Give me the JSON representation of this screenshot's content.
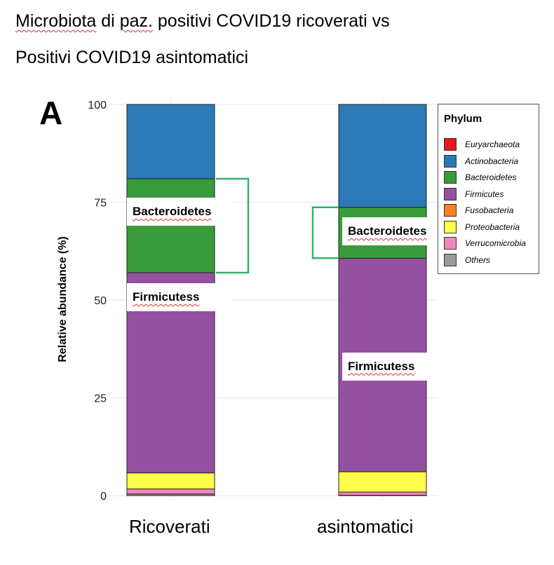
{
  "title": {
    "line1_parts": [
      "Microbiota",
      " di ",
      "paz.",
      " positivi COVID19 ",
      "ricoverati",
      " vs"
    ],
    "line2_parts": [
      "Positivi  COVID19 ",
      "asintomatici"
    ]
  },
  "panel_letter": "A",
  "chart_data": {
    "type": "bar",
    "stacked": true,
    "categories": [
      "Ricoverati",
      "asintomatici"
    ],
    "ylabel": "Relative abundance (%)",
    "ylim": [
      0,
      100
    ],
    "yticks": [
      0,
      25,
      50,
      75,
      100
    ],
    "grid": true,
    "legend_title": "Phylum",
    "legend_position": "right",
    "series": [
      {
        "name": "Euryarchaeota",
        "color": "#e41a1c",
        "values": [
          0.0,
          0.0
        ]
      },
      {
        "name": "Actinobacteria",
        "color": "#2b79b6",
        "values": [
          19.0,
          26.3
        ]
      },
      {
        "name": "Bacteroidetes",
        "color": "#3a9b3a",
        "values": [
          24.0,
          13.0
        ]
      },
      {
        "name": "Firmicutes",
        "color": "#9550a2",
        "values": [
          51.2,
          54.6
        ]
      },
      {
        "name": "Fusobacteria",
        "color": "#ff7f1f",
        "values": [
          0.0,
          0.0
        ]
      },
      {
        "name": "Proteobacteria",
        "color": "#fffe4a",
        "values": [
          4.1,
          5.2
        ]
      },
      {
        "name": "Verrucomicrobia",
        "color": "#f287bf",
        "values": [
          1.3,
          0.8
        ]
      },
      {
        "name": "Others",
        "color": "#999999",
        "values": [
          0.4,
          0.1
        ]
      }
    ],
    "annotations": [
      {
        "text": "Bacteroidetes",
        "category": "Ricoverati"
      },
      {
        "text": "Firmicutess",
        "category": "Ricoverati"
      },
      {
        "text": "Bacteroidetes",
        "category": "asintomatici"
      },
      {
        "text": "Firmicutess",
        "category": "asintomatici"
      }
    ],
    "bracket_color": "#2db46b"
  }
}
